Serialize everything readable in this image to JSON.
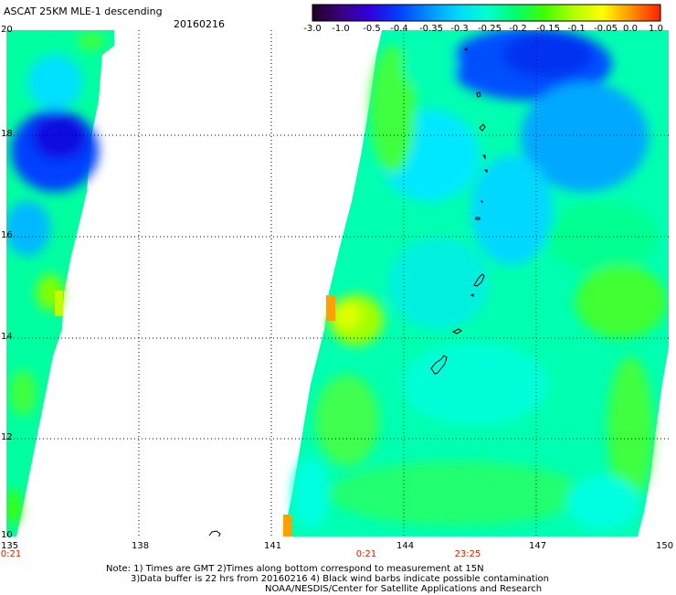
{
  "header": {
    "title": "ASCAT 25KM MLE-1 descending",
    "date": "20160216"
  },
  "colorbar": {
    "labels": [
      "-3.0",
      "-1.0",
      "-0.5",
      "-0.4",
      "-0.35",
      "-0.3",
      "-0.25",
      "-0.2",
      "-0.15",
      "-0.1",
      "-0.05",
      "0.0",
      "1.0"
    ],
    "colors": [
      "#200020",
      "#3a0080",
      "#3000e0",
      "#0040ff",
      "#0090ff",
      "#00d8ff",
      "#00ffd0",
      "#00ff70",
      "#40ff00",
      "#b0ff00",
      "#ffff00",
      "#ff9000",
      "#ff2000"
    ]
  },
  "map": {
    "lon_labels": [
      "135",
      "138",
      "141",
      "144",
      "147",
      "150"
    ],
    "lat_labels": [
      "20",
      "18",
      "16",
      "14",
      "12",
      "10"
    ],
    "time_labels": [
      "0:21",
      "0:21",
      "23:25"
    ],
    "lon_range": [
      135,
      150
    ],
    "lat_range": [
      10,
      20
    ]
  },
  "footer": {
    "line1": "Note: 1) Times are GMT 2)Times along bottom correspond to measurement at 15N",
    "line2": "3)Data buffer is 22 hrs from 20160216 4) Black wind barbs indicate possible contamination",
    "line3": "NOAA/NESDIS/Center for Satellite Applications and Research"
  }
}
